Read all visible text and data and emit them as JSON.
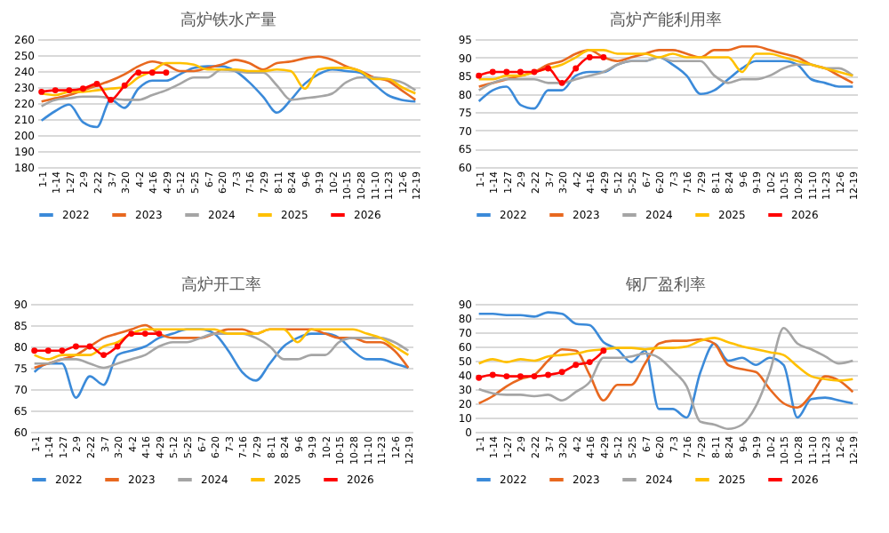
{
  "chart_data": [
    {
      "type": "line",
      "title": "高炉铁水产量",
      "categories": [
        "1-1",
        "1-14",
        "1-27",
        "2-9",
        "2-22",
        "3-7",
        "3-20",
        "4-2",
        "4-16",
        "4-29",
        "5-12",
        "5-25",
        "6-7",
        "6-20",
        "7-3",
        "7-16",
        "7-29",
        "8-11",
        "8-24",
        "9-6",
        "9-19",
        "10-2",
        "10-15",
        "10-28",
        "11-10",
        "11-23",
        "12-6",
        "12-19"
      ],
      "ylim": [
        180,
        260
      ],
      "yticks": [
        180,
        190,
        200,
        210,
        220,
        230,
        240,
        250,
        260
      ],
      "grid": "y",
      "legend": "bottom",
      "series": [
        {
          "name": "2022",
          "color": "#3b8ad9",
          "values": [
            209,
            215,
            219,
            208,
            205,
            222,
            217,
            229,
            234,
            234,
            238,
            242,
            243,
            243,
            240,
            233,
            224,
            214,
            222,
            232,
            238,
            241,
            240,
            239,
            232,
            225,
            222,
            221
          ]
        },
        {
          "name": "2023",
          "color": "#e8681f",
          "values": [
            221,
            223,
            225,
            228,
            231,
            234,
            238,
            243,
            246,
            244,
            240,
            240,
            242,
            244,
            247,
            245,
            241,
            245,
            246,
            248,
            249,
            247,
            243,
            240,
            236,
            234,
            228,
            222
          ]
        },
        {
          "name": "2024",
          "color": "#a5a5a5",
          "values": [
            218,
            222,
            223,
            224,
            224,
            223,
            222,
            222,
            225,
            228,
            232,
            236,
            236,
            241,
            240,
            239,
            239,
            231,
            222,
            223,
            224,
            226,
            233,
            236,
            236,
            235,
            233,
            228
          ]
        },
        {
          "name": "2025",
          "color": "#ffc000",
          "values": [
            226,
            225,
            227,
            227,
            228,
            229,
            230,
            236,
            240,
            245,
            245,
            244,
            241,
            241,
            241,
            240,
            240,
            241,
            240,
            229,
            241,
            242,
            242,
            240,
            235,
            235,
            230,
            226
          ]
        },
        {
          "name": "2026",
          "color": "#ff0000",
          "marker": "circle",
          "values": [
            227,
            228,
            228,
            229,
            232,
            222,
            231,
            239,
            239,
            239,
            null,
            null,
            null,
            null,
            null,
            null,
            null,
            null,
            null,
            null,
            null,
            null,
            null,
            null,
            null,
            null,
            null,
            null
          ]
        }
      ]
    },
    {
      "type": "line",
      "title": "高炉产能利用率",
      "categories": [
        "1-1",
        "1-14",
        "1-27",
        "2-9",
        "2-22",
        "3-7",
        "3-20",
        "4-2",
        "4-16",
        "4-29",
        "5-12",
        "5-25",
        "6-7",
        "6-20",
        "7-3",
        "7-16",
        "7-29",
        "8-11",
        "8-24",
        "9-6",
        "9-19",
        "10-2",
        "10-15",
        "10-28",
        "11-10",
        "11-23",
        "12-6",
        "12-19"
      ],
      "ylim": [
        60,
        95
      ],
      "yticks": [
        60,
        65,
        70,
        75,
        80,
        85,
        90,
        95
      ],
      "grid": "y",
      "legend": "bottom",
      "series": [
        {
          "name": "2022",
          "color": "#3b8ad9",
          "values": [
            78,
            81,
            82,
            77,
            76,
            81,
            81,
            85,
            86,
            86,
            88,
            89,
            89,
            90,
            88,
            85,
            80,
            81,
            84,
            87,
            89,
            89,
            89,
            88,
            84,
            83,
            82,
            82
          ]
        },
        {
          "name": "2023",
          "color": "#e8681f",
          "values": [
            82,
            83,
            84,
            85,
            86,
            88,
            89,
            91,
            92,
            90,
            89,
            90,
            91,
            92,
            92,
            91,
            90,
            92,
            92,
            93,
            93,
            92,
            91,
            90,
            88,
            87,
            85,
            83
          ]
        },
        {
          "name": "2024",
          "color": "#a5a5a5",
          "values": [
            81,
            83,
            84,
            84,
            84,
            83,
            83,
            84,
            85,
            86,
            88,
            89,
            89,
            90,
            89,
            89,
            89,
            85,
            83,
            84,
            84,
            85,
            87,
            88,
            88,
            87,
            87,
            85
          ]
        },
        {
          "name": "2025",
          "color": "#ffc000",
          "values": [
            84,
            84,
            85,
            85,
            86,
            87,
            88,
            90,
            92,
            92,
            91,
            91,
            91,
            90,
            91,
            90,
            90,
            90,
            90,
            86,
            91,
            91,
            90,
            89,
            88,
            87,
            86,
            85
          ]
        },
        {
          "name": "2026",
          "color": "#ff0000",
          "marker": "circle",
          "values": [
            85,
            86,
            86,
            86,
            86,
            87,
            83,
            87,
            90,
            90,
            null,
            null,
            null,
            null,
            null,
            null,
            null,
            null,
            null,
            null,
            null,
            null,
            null,
            null,
            null,
            null,
            null,
            null
          ]
        }
      ]
    },
    {
      "type": "line",
      "title": "高炉开工率",
      "categories": [
        "1-1",
        "1-14",
        "1-27",
        "2-9",
        "2-22",
        "3-7",
        "3-20",
        "4-2",
        "4-16",
        "4-29",
        "5-12",
        "5-25",
        "6-7",
        "6-20",
        "7-3",
        "7-16",
        "7-29",
        "8-11",
        "8-24",
        "9-6",
        "9-19",
        "10-2",
        "10-15",
        "10-28",
        "11-10",
        "11-23",
        "12-6",
        "12-19"
      ],
      "ylim": [
        60,
        90
      ],
      "yticks": [
        60,
        65,
        70,
        75,
        80,
        85,
        90
      ],
      "grid": "y",
      "legend": "bottom",
      "series": [
        {
          "name": "2022",
          "color": "#3b8ad9",
          "values": [
            74,
            76,
            76,
            68,
            73,
            71,
            78,
            79,
            80,
            82,
            83,
            84,
            84,
            83,
            79,
            74,
            72,
            76,
            80,
            82,
            83,
            83,
            82,
            79,
            77,
            77,
            76,
            75
          ]
        },
        {
          "name": "2023",
          "color": "#e8681f",
          "values": [
            75,
            76,
            77,
            78,
            80,
            82,
            83,
            84,
            85,
            83,
            82,
            82,
            82,
            83,
            84,
            84,
            83,
            84,
            84,
            84,
            84,
            83,
            82,
            82,
            81,
            81,
            79,
            75
          ]
        },
        {
          "name": "2024",
          "color": "#a5a5a5",
          "values": [
            76,
            76,
            77,
            77,
            76,
            75,
            76,
            77,
            78,
            80,
            81,
            81,
            82,
            83,
            83,
            83,
            82,
            80,
            77,
            77,
            78,
            78,
            81,
            82,
            82,
            82,
            81,
            79
          ]
        },
        {
          "name": "2025",
          "color": "#ffc000",
          "values": [
            78,
            77,
            78,
            78,
            78,
            80,
            81,
            83,
            84,
            84,
            84,
            84,
            84,
            84,
            83,
            83,
            83,
            84,
            84,
            81,
            84,
            84,
            84,
            84,
            83,
            82,
            80,
            78
          ]
        },
        {
          "name": "2026",
          "color": "#ff0000",
          "marker": "circle",
          "values": [
            79,
            79,
            79,
            80,
            80,
            78,
            80,
            83,
            83,
            83,
            null,
            null,
            null,
            null,
            null,
            null,
            null,
            null,
            null,
            null,
            null,
            null,
            null,
            null,
            null,
            null,
            null,
            null
          ]
        }
      ]
    },
    {
      "type": "line",
      "title": "钢厂盈利率",
      "categories": [
        "1-1",
        "1-14",
        "1-27",
        "2-9",
        "2-22",
        "3-7",
        "3-20",
        "4-2",
        "4-16",
        "4-29",
        "5-12",
        "5-25",
        "6-7",
        "6-20",
        "7-3",
        "7-16",
        "7-29",
        "8-11",
        "8-24",
        "9-6",
        "9-19",
        "10-2",
        "10-15",
        "10-28",
        "11-10",
        "11-23",
        "12-6",
        "12-19"
      ],
      "ylim": [
        0,
        90
      ],
      "yticks": [
        0,
        10,
        20,
        30,
        40,
        50,
        60,
        70,
        80,
        90
      ],
      "grid": "y",
      "legend": "bottom",
      "series": [
        {
          "name": "2022",
          "color": "#3b8ad9",
          "values": [
            83,
            83,
            82,
            82,
            81,
            84,
            83,
            76,
            75,
            63,
            58,
            49,
            57,
            16,
            16,
            10,
            42,
            62,
            50,
            52,
            47,
            52,
            47,
            10,
            23,
            24,
            22,
            20
          ]
        },
        {
          "name": "2023",
          "color": "#e8681f",
          "values": [
            20,
            25,
            32,
            37,
            40,
            50,
            58,
            57,
            40,
            22,
            33,
            33,
            48,
            62,
            64,
            64,
            65,
            62,
            47,
            44,
            42,
            30,
            20,
            17,
            26,
            39,
            36,
            28
          ]
        },
        {
          "name": "2024",
          "color": "#a5a5a5",
          "values": [
            30,
            27,
            26,
            26,
            25,
            26,
            22,
            28,
            35,
            52,
            52,
            53,
            55,
            52,
            43,
            32,
            7,
            5,
            2,
            5,
            18,
            42,
            73,
            62,
            58,
            53,
            48,
            50
          ]
        },
        {
          "name": "2025",
          "color": "#ffc000",
          "values": [
            48,
            51,
            49,
            51,
            50,
            53,
            54,
            55,
            57,
            58,
            59,
            59,
            58,
            59,
            59,
            60,
            64,
            66,
            63,
            60,
            58,
            56,
            54,
            46,
            39,
            37,
            36,
            37
          ]
        },
        {
          "name": "2026",
          "color": "#ff0000",
          "marker": "circle",
          "values": [
            38,
            40,
            39,
            39,
            39,
            40,
            42,
            47,
            49,
            57,
            null,
            null,
            null,
            null,
            null,
            null,
            null,
            null,
            null,
            null,
            null,
            null,
            null,
            null,
            null,
            null,
            null,
            null
          ]
        }
      ]
    }
  ]
}
